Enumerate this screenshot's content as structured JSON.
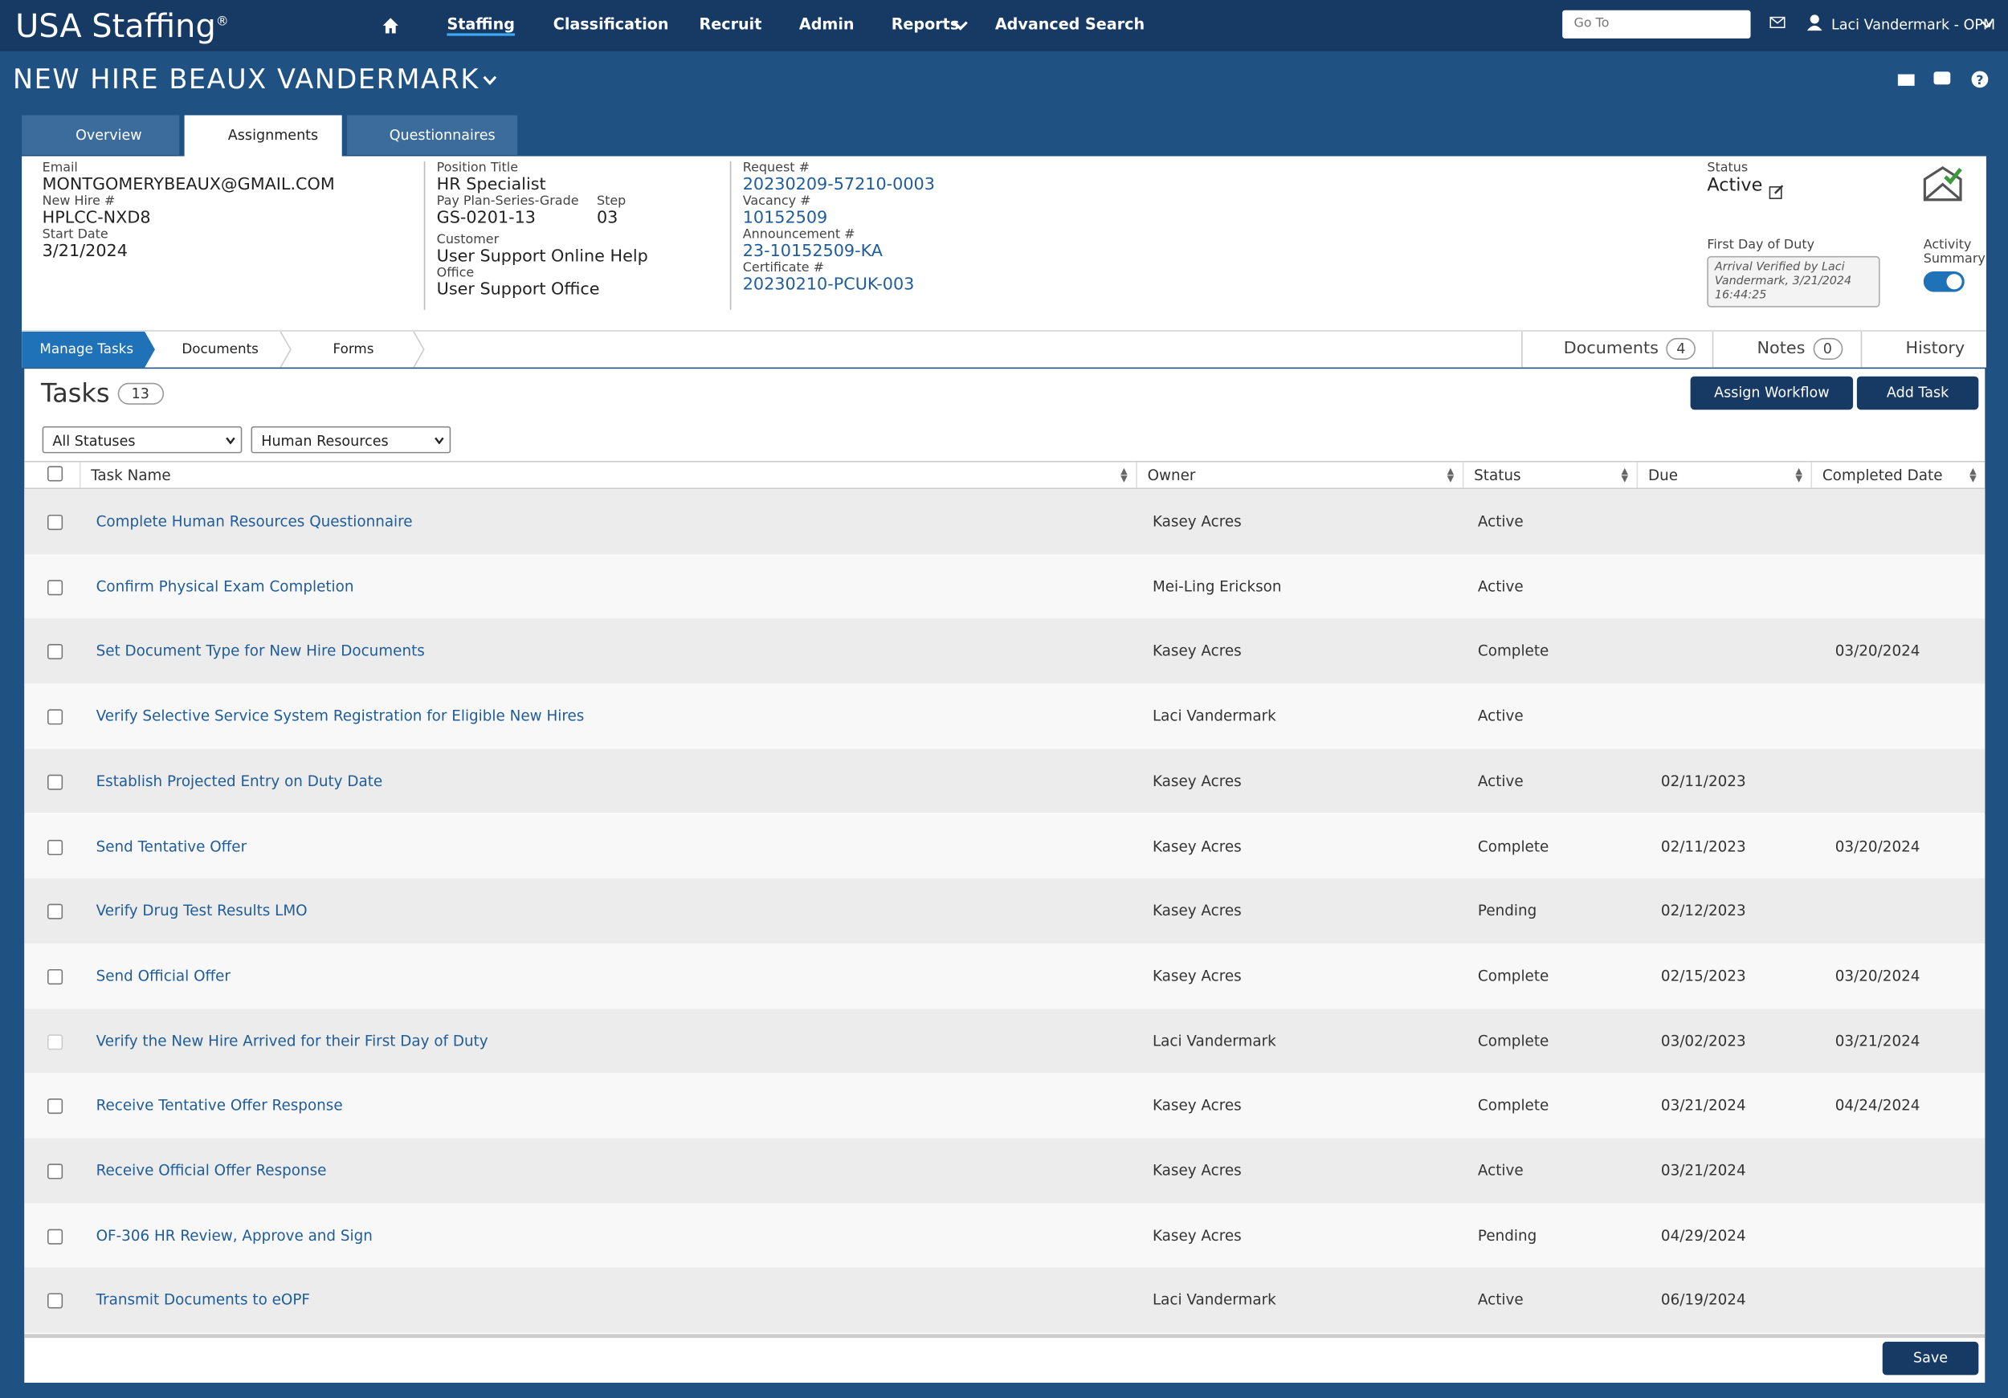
{
  "nav": {
    "brand": "USA Staffing",
    "registered_mark": "®",
    "menu": [
      "Staffing",
      "Classification",
      "Recruit",
      "Admin",
      "Reports",
      "Advanced Search"
    ],
    "search_placeholder": "Go To",
    "user": "Laci Vandermark - OPM"
  },
  "header": {
    "title": "NEW HIRE BEAUX VANDERMARK"
  },
  "tabs": [
    "Overview",
    "Assignments",
    "Questionnaires"
  ],
  "info": {
    "email": {
      "label": "Email",
      "value": "MONTGOMERYBEAUX@GMAIL.COM"
    },
    "new_hire": {
      "label": "New Hire #",
      "value": "HPLCC-NXD8"
    },
    "start_date": {
      "label": "Start Date",
      "value": "3/21/2024"
    },
    "position_title": {
      "label": "Position Title",
      "value": "HR Specialist"
    },
    "pay_plan": {
      "label": "Pay Plan-Series-Grade",
      "value": "GS-0201-13"
    },
    "step": {
      "label": "Step",
      "value": "03"
    },
    "customer": {
      "label": "Customer",
      "value": "User Support Online Help"
    },
    "office": {
      "label": "Office",
      "value": "User Support Office"
    },
    "request": {
      "label": "Request #",
      "value": "20230209-57210-0003"
    },
    "vacancy": {
      "label": "Vacancy #",
      "value": "10152509"
    },
    "announcement": {
      "label": "Announcement #",
      "value": "23-10152509-KA"
    },
    "certificate": {
      "label": "Certificate #",
      "value": "20230210-PCUK-003"
    },
    "status": {
      "label": "Status",
      "value": "Active"
    },
    "first_day": {
      "label": "First Day of Duty",
      "value": "Arrival Verified by Laci Vandermark, 3/21/2024 16:44:25"
    },
    "activity_summary": {
      "label": "Activity Summary"
    }
  },
  "subtabs": [
    "Manage Tasks",
    "Documents",
    "Forms"
  ],
  "side_tabs": [
    {
      "label": "Documents",
      "count": 4
    },
    {
      "label": "Notes",
      "count": 0
    },
    {
      "label": "History"
    }
  ],
  "tasks": {
    "title": "Tasks",
    "count": 13,
    "buttons": [
      "Assign Workflow",
      "Add Task"
    ],
    "filters": [
      "All Statuses",
      "Human Resources"
    ],
    "columns": [
      "Task Name",
      "Owner",
      "Status",
      "Due",
      "Completed Date"
    ],
    "rows": [
      [
        "Complete Human Resources Questionnaire",
        "Kasey Acres",
        "Active",
        null,
        null
      ],
      [
        "Confirm Physical Exam Completion",
        "Mei-Ling Erickson",
        "Active",
        null,
        null
      ],
      [
        "Set Document Type for New Hire Documents",
        "Kasey Acres",
        "Complete",
        null,
        "03/20/2024"
      ],
      [
        "Verify Selective Service System Registration for Eligible New Hires",
        "Laci Vandermark",
        "Active",
        null,
        null
      ],
      [
        "Establish Projected Entry on Duty Date",
        "Kasey Acres",
        "Active",
        "02/11/2023",
        null
      ],
      [
        "Send Tentative Offer",
        "Kasey Acres",
        "Complete",
        "02/11/2023",
        "03/20/2024"
      ],
      [
        "Verify Drug Test Results LMO",
        "Kasey Acres",
        "Pending",
        "02/12/2023",
        null
      ],
      [
        "Send Official Offer",
        "Kasey Acres",
        "Complete",
        "02/15/2023",
        "03/20/2024"
      ],
      [
        "Verify the New Hire Arrived for their First Day of Duty",
        "Laci Vandermark",
        "Complete",
        "03/02/2023",
        "03/21/2024"
      ],
      [
        "Receive Tentative Offer Response",
        "Kasey Acres",
        "Complete",
        "03/21/2024",
        "04/24/2024"
      ],
      [
        "Receive Official Offer Response",
        "Kasey Acres",
        "Active",
        "03/21/2024",
        null
      ],
      [
        "OF-306 HR Review, Approve and Sign",
        "Kasey Acres",
        "Pending",
        "04/29/2024",
        null
      ],
      [
        "Transmit Documents to eOPF",
        "Laci Vandermark",
        "Active",
        "06/19/2024",
        null
      ]
    ],
    "save": "Save"
  }
}
